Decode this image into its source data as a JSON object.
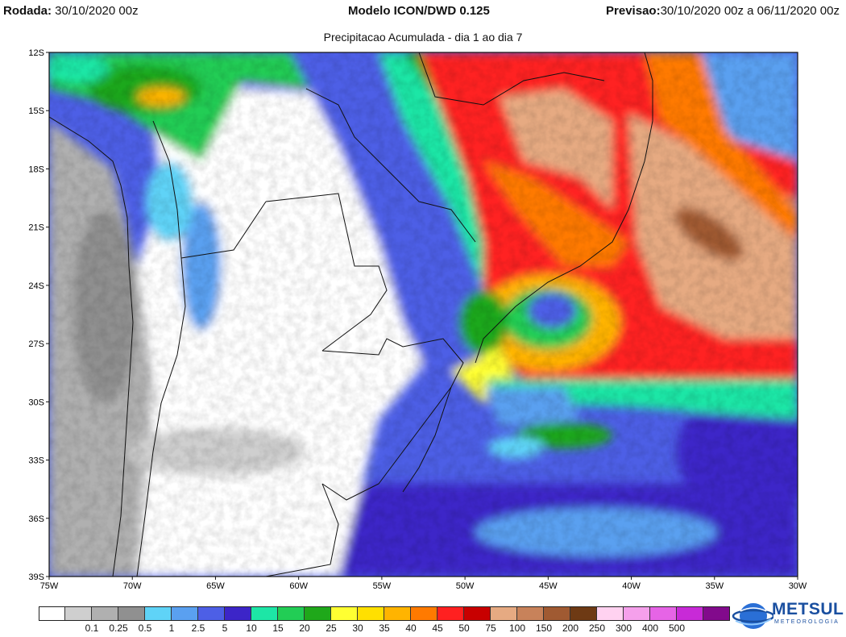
{
  "header": {
    "left_label": "Rodada:",
    "left_value": "30/10/2020 00z",
    "center_label": "Modelo ICON/DWD 0.125",
    "right_label": "Previsao:",
    "right_value": "30/10/2020 00z a 06/11/2020 00z"
  },
  "subtitle": "Precipitacao Acumulada - dia 1 ao dia 7",
  "axes": {
    "lat_ticks": [
      "12S",
      "15S",
      "18S",
      "21S",
      "24S",
      "27S",
      "30S",
      "33S",
      "36S",
      "39S"
    ],
    "lon_ticks": [
      "75W",
      "70W",
      "65W",
      "60W",
      "55W",
      "50W",
      "45W",
      "40W",
      "35W",
      "30W"
    ],
    "lat_range": [
      -39,
      -12
    ],
    "lon_range": [
      -75,
      -30
    ]
  },
  "legend": {
    "colors": [
      "#ffffff",
      "#cfcfcf",
      "#b0b0b0",
      "#909090",
      "#5fd3f7",
      "#5aa0f0",
      "#4d5fe6",
      "#3c25c8",
      "#1de6a6",
      "#22cd55",
      "#1fa81a",
      "#ffff32",
      "#ffe000",
      "#ffb400",
      "#ff7a00",
      "#ff2020",
      "#c80000",
      "#e6aa82",
      "#c8825a",
      "#a05a32",
      "#6e3a14",
      "#ffd2f0",
      "#f5a0eb",
      "#e664e6",
      "#c82ad7",
      "#820a8c"
    ],
    "labels": [
      "0.1",
      "0.25",
      "0.5",
      "1",
      "2.5",
      "5",
      "10",
      "15",
      "20",
      "25",
      "30",
      "35",
      "40",
      "45",
      "50",
      "75",
      "100",
      "150",
      "200",
      "250",
      "300",
      "400",
      "500"
    ]
  },
  "logo": {
    "name": "METSUL",
    "sub": "METEOROLOGIA"
  }
}
